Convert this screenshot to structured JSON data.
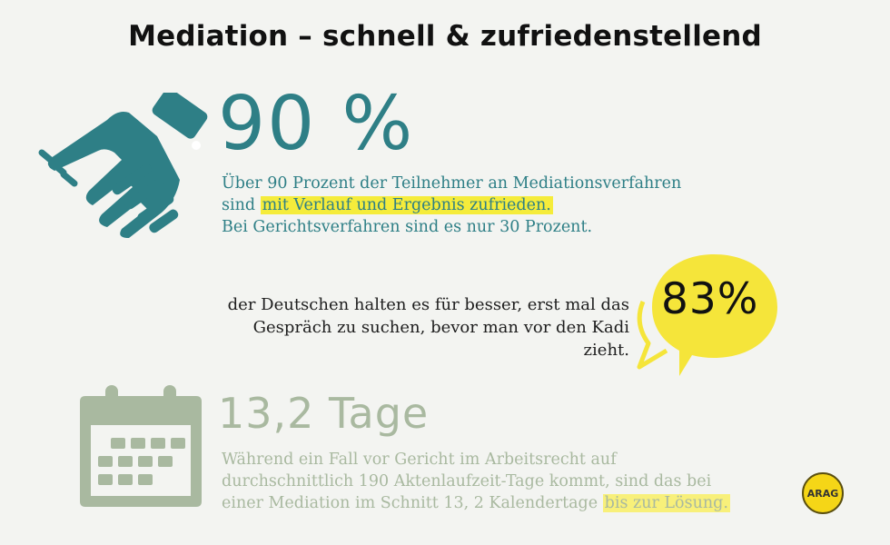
{
  "title": "Mediation – schnell & zufriedenstellend",
  "stat1": {
    "value": "90 %",
    "line1": "Über 90 Prozent der Teilnehmer an Mediationsverfahren",
    "line2_pre": "sind ",
    "line2_hl": "mit Verlauf und Ergebnis zufrieden.",
    "line3": "Bei Gerichtsverfahren sind es nur 30 Prozent.",
    "icon": "handshake-icon",
    "color": "#2e7f86"
  },
  "stat2": {
    "value": "83%",
    "line1": "der Deutschen halten es für besser,  erst mal das",
    "line2": "Gespräch zu suchen, bevor man vor den Kadi zieht.",
    "icon": "speech-bubble-icon",
    "color": "#f5e53a"
  },
  "stat3": {
    "value": "13,2 Tage",
    "line1": "Während ein Fall vor Gericht im Arbeitsrecht auf",
    "line2": "durchschnittlich 190 Aktenlaufzeit-Tage kommt,  sind das bei",
    "line3_pre": "einer Mediation im Schnitt 13, 2 Kalendertage ",
    "line3_hl": "bis zur Lösung.",
    "icon": "calendar-icon",
    "color": "#a9b9a0"
  },
  "logo": {
    "text": "ARAG"
  }
}
